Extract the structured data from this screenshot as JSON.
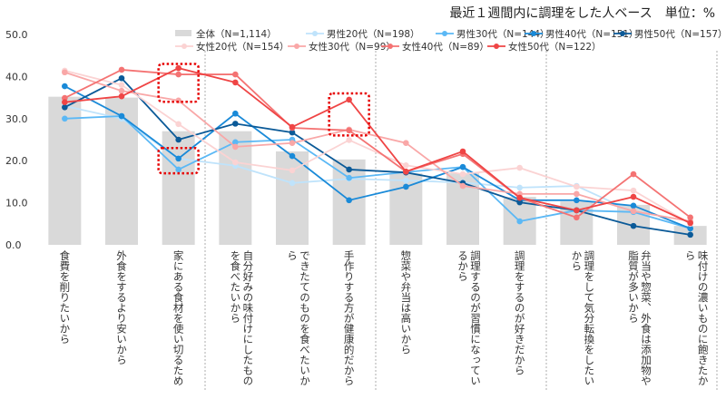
{
  "header": {
    "title": "最近１週間内に調理をした人ベース　単位：%"
  },
  "chart_data": {
    "type": "bar+line",
    "title": "最近１週間内に調理をした人ベース　単位：%",
    "ylim": [
      0,
      50
    ],
    "yticks": [
      "0.0",
      "10.0",
      "20.0",
      "30.0",
      "40.0",
      "50.0"
    ],
    "grid": false,
    "legend_position": "top",
    "categories": [
      "食費を削りたいから",
      "外食をするより安いから",
      "家にある食材を使い切るため",
      "自分好みの味付けにしたものを食べたいから",
      "できたてのものを食べたいから",
      "手作りする方が健康的だから",
      "惣菜や弁当は高いから",
      "調理するのが習慣になっているから",
      "調理をするのが好きだから",
      "調理をして気分転換をしたいから",
      "弁当や惣菜、外食は添加物や脂質が多いから",
      "味付けの濃いものに飽きたから"
    ],
    "bar_series": {
      "name": "全体（N=1,114）",
      "color": "#d9d9d9",
      "values": [
        35.2,
        35.0,
        27.0,
        27.0,
        22.2,
        20.3,
        17.0,
        17.0,
        11.4,
        10.3,
        9.5,
        4.5
      ]
    },
    "series": [
      {
        "name": "男性20代（N=198）",
        "color": "#bfe3fb",
        "values": [
          33.0,
          30.0,
          20.5,
          18.8,
          14.7,
          15.7,
          15.3,
          14.8,
          13.6,
          14.0,
          7.8,
          4.0
        ]
      },
      {
        "name": "男性30代（N=144）",
        "color": "#5bb8f5",
        "values": [
          30.0,
          30.6,
          17.9,
          24.4,
          25.0,
          15.9,
          17.3,
          18.5,
          5.6,
          8.2,
          7.8,
          3.9
        ]
      },
      {
        "name": "男性40代（N=151）",
        "color": "#1a8ad8",
        "values": [
          37.7,
          30.6,
          20.5,
          31.2,
          21.1,
          10.6,
          13.8,
          18.5,
          10.6,
          10.6,
          9.3,
          3.9
        ]
      },
      {
        "name": "男性50代（N=157）",
        "color": "#0b5a98",
        "values": [
          32.7,
          39.6,
          25.0,
          28.8,
          26.7,
          17.9,
          17.2,
          14.7,
          10.1,
          8.2,
          4.5,
          2.4
        ]
      },
      {
        "name": "女性20代（N=154）",
        "color": "#fbd3d3",
        "values": [
          41.4,
          38.0,
          28.7,
          19.6,
          17.7,
          24.9,
          18.9,
          16.8,
          18.3,
          13.8,
          12.9,
          5.0
        ]
      },
      {
        "name": "女性30代（N=99）",
        "color": "#f9a7a7",
        "values": [
          41.0,
          36.6,
          34.3,
          23.3,
          24.2,
          27.4,
          24.2,
          14.0,
          12.1,
          12.1,
          8.0,
          5.6
        ]
      },
      {
        "name": "女性40代（N=89）",
        "color": "#f47373",
        "values": [
          34.9,
          41.6,
          40.5,
          40.5,
          27.8,
          27.2,
          17.4,
          21.6,
          11.2,
          6.5,
          16.8,
          6.5
        ]
      },
      {
        "name": "女性50代（N=122）",
        "color": "#ef4545",
        "values": [
          33.9,
          35.3,
          42.0,
          38.6,
          28.0,
          34.5,
          17.4,
          22.2,
          11.2,
          8.2,
          11.4,
          5.2
        ]
      }
    ],
    "highlights": [
      {
        "category_index": 2,
        "range": [
          34,
          43
        ]
      },
      {
        "category_index": 2,
        "range": [
          17,
          23
        ]
      },
      {
        "category_index": 5,
        "range": [
          26,
          36
        ]
      }
    ],
    "highlight_color": "#e60000"
  }
}
